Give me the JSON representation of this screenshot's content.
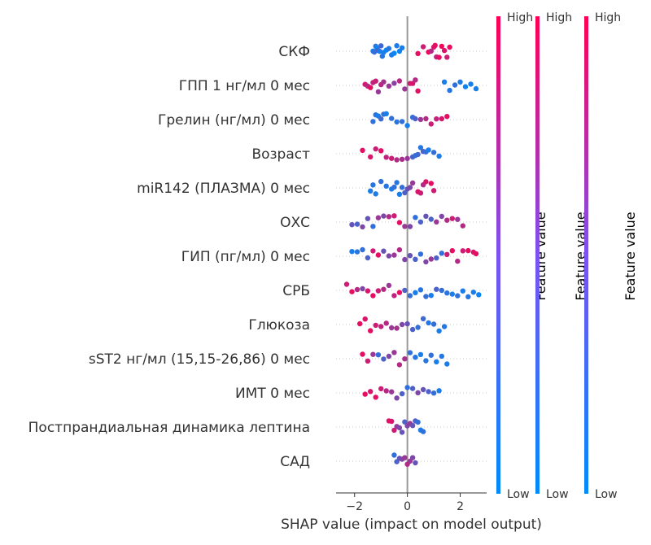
{
  "chart_data": {
    "type": "scatter",
    "title": "",
    "xlabel": "SHAP value (impact on model output)",
    "ylabel": "",
    "xlim": [
      -2.7,
      3.0
    ],
    "xticks": [
      -2,
      0,
      2
    ],
    "xtick_labels": [
      "−2",
      "0",
      "2"
    ],
    "features": [
      "СКФ",
      "ГПП 1 нг/мл 0 мес",
      "Грелин (нг/мл) 0 мес",
      "Возраст",
      "miR142 (ПЛАЗМА) 0 мес",
      "ОХС",
      "ГИП (пг/мл) 0 мес",
      "СРБ",
      "Глюкоза",
      "sST2 нг/мл (15,15-26,86) 0 мес",
      "ИМТ 0 мес",
      "Постпрандиальная динамика лептина",
      "САД"
    ],
    "colorbars": [
      {
        "high": "High",
        "low": "Low",
        "title": "Feature value"
      },
      {
        "high": "High",
        "low": "Low",
        "title": "Feature value"
      },
      {
        "high": "High",
        "low": "Low",
        "title": "Feature value"
      }
    ],
    "colors": {
      "low": "#008bfb",
      "high": "#ff0052",
      "missing": "#808080",
      "zero_line": "#999999",
      "row_line": "#cccccc"
    },
    "grid": false,
    "legend": "right",
    "series": [
      {
        "feature": "СКФ",
        "points": [
          [
            -1.3,
            0.1
          ],
          [
            -1.25,
            0.2
          ],
          [
            -1.2,
            0.15
          ],
          [
            -1.15,
            0.05
          ],
          [
            -1.1,
            0.3
          ],
          [
            -1.05,
            0.1
          ],
          [
            -1.0,
            0.25
          ],
          [
            -0.95,
            0.15
          ],
          [
            -0.9,
            0.1
          ],
          [
            -0.8,
            0.05
          ],
          [
            -0.7,
            0.15
          ],
          [
            -0.6,
            0.1
          ],
          [
            -0.5,
            0.05
          ],
          [
            -0.4,
            0.1
          ],
          [
            -0.3,
            0.05
          ],
          [
            -0.2,
            0.1
          ],
          [
            0.4,
            0.9
          ],
          [
            0.6,
            0.8
          ],
          [
            0.8,
            0.95
          ],
          [
            0.9,
            0.7
          ],
          [
            1.0,
            0.85
          ],
          [
            1.05,
            0.9
          ],
          [
            1.1,
            0.75
          ],
          [
            1.2,
            0.9
          ],
          [
            1.3,
            0.95
          ],
          [
            1.4,
            0.85
          ],
          [
            1.5,
            0.8
          ],
          [
            1.6,
            0.9
          ]
        ]
      },
      {
        "feature": "ГПП 1 нг/мл 0 мес",
        "points": [
          [
            -1.6,
            0.8
          ],
          [
            -1.5,
            0.7
          ],
          [
            -1.4,
            0.9
          ],
          [
            -1.3,
            0.75
          ],
          [
            -1.2,
            0.8
          ],
          [
            -1.1,
            0.6
          ],
          [
            -1.0,
            0.7
          ],
          [
            -0.9,
            0.65
          ],
          [
            -0.7,
            0.6
          ],
          [
            -0.5,
            0.55
          ],
          [
            -0.3,
            0.7
          ],
          [
            -0.1,
            0.6
          ],
          [
            0.1,
            0.8
          ],
          [
            0.2,
            0.85
          ],
          [
            0.3,
            0.7
          ],
          [
            0.4,
            0.9
          ],
          [
            1.4,
            0.1
          ],
          [
            1.6,
            0.15
          ],
          [
            1.8,
            0.2
          ],
          [
            2.0,
            0.1
          ],
          [
            2.2,
            0.05
          ],
          [
            2.4,
            0.1
          ],
          [
            2.6,
            0.1
          ]
        ]
      },
      {
        "feature": "Грелин (нг/мл) 0 мес",
        "points": [
          [
            -1.3,
            0.2
          ],
          [
            -1.2,
            0.15
          ],
          [
            -1.1,
            0.1
          ],
          [
            -1.0,
            0.25
          ],
          [
            -0.9,
            0.2
          ],
          [
            -0.8,
            0.1
          ],
          [
            -0.6,
            0.2
          ],
          [
            -0.4,
            0.15
          ],
          [
            -0.2,
            0.2
          ],
          [
            0.0,
            0.1
          ],
          [
            0.2,
            0.2
          ],
          [
            0.3,
            0.3
          ],
          [
            0.5,
            0.6
          ],
          [
            0.7,
            0.7
          ],
          [
            0.9,
            0.8
          ],
          [
            1.1,
            0.75
          ],
          [
            1.3,
            0.85
          ],
          [
            1.5,
            0.9
          ]
        ]
      },
      {
        "feature": "Возраст",
        "points": [
          [
            -1.7,
            0.9
          ],
          [
            -1.4,
            0.85
          ],
          [
            -1.2,
            0.8
          ],
          [
            -1.0,
            0.9
          ],
          [
            -0.8,
            0.75
          ],
          [
            -0.6,
            0.8
          ],
          [
            -0.4,
            0.7
          ],
          [
            -0.2,
            0.65
          ],
          [
            0.0,
            0.6
          ],
          [
            0.2,
            0.3
          ],
          [
            0.3,
            0.2
          ],
          [
            0.4,
            0.25
          ],
          [
            0.5,
            0.15
          ],
          [
            0.6,
            0.3
          ],
          [
            0.7,
            0.2
          ],
          [
            0.8,
            0.1
          ],
          [
            1.0,
            0.2
          ],
          [
            1.2,
            0.1
          ]
        ]
      },
      {
        "feature": "miR142 (ПЛАЗМА) 0 мес",
        "points": [
          [
            -1.4,
            0.1
          ],
          [
            -1.3,
            0.15
          ],
          [
            -1.2,
            0.1
          ],
          [
            -1.0,
            0.2
          ],
          [
            -0.8,
            0.15
          ],
          [
            -0.6,
            0.1
          ],
          [
            -0.5,
            0.2
          ],
          [
            -0.4,
            0.15
          ],
          [
            -0.3,
            0.1
          ],
          [
            -0.2,
            0.2
          ],
          [
            -0.1,
            0.3
          ],
          [
            0.0,
            0.4
          ],
          [
            0.1,
            0.5
          ],
          [
            0.2,
            0.6
          ],
          [
            0.4,
            0.9
          ],
          [
            0.5,
            0.8
          ],
          [
            0.6,
            0.7
          ],
          [
            0.7,
            0.85
          ],
          [
            0.9,
            0.9
          ],
          [
            1.0,
            0.8
          ]
        ]
      },
      {
        "feature": "ОХС",
        "points": [
          [
            -2.1,
            0.4
          ],
          [
            -1.9,
            0.3
          ],
          [
            -1.7,
            0.5
          ],
          [
            -1.5,
            0.4
          ],
          [
            -1.3,
            0.2
          ],
          [
            -1.1,
            0.6
          ],
          [
            -0.9,
            0.5
          ],
          [
            -0.7,
            0.7
          ],
          [
            -0.5,
            0.8
          ],
          [
            -0.3,
            0.9
          ],
          [
            -0.1,
            0.6
          ],
          [
            0.1,
            0.5
          ],
          [
            0.3,
            0.2
          ],
          [
            0.5,
            0.3
          ],
          [
            0.7,
            0.4
          ],
          [
            0.9,
            0.3
          ],
          [
            1.1,
            0.6
          ],
          [
            1.3,
            0.5
          ],
          [
            1.5,
            0.7
          ],
          [
            1.7,
            0.8
          ],
          [
            1.9,
            0.6
          ],
          [
            2.1,
            0.7
          ]
        ]
      },
      {
        "feature": "ГИП (пг/мл) 0 мес",
        "points": [
          [
            -2.1,
            0.1
          ],
          [
            -1.9,
            0.15
          ],
          [
            -1.7,
            0.2
          ],
          [
            -1.5,
            0.3
          ],
          [
            -1.3,
            0.8
          ],
          [
            -1.1,
            0.9
          ],
          [
            -0.9,
            0.4
          ],
          [
            -0.7,
            0.5
          ],
          [
            -0.5,
            0.6
          ],
          [
            -0.3,
            0.7
          ],
          [
            -0.1,
            0.5
          ],
          [
            0.1,
            0.4
          ],
          [
            0.3,
            0.3
          ],
          [
            0.5,
            0.2
          ],
          [
            0.7,
            0.5
          ],
          [
            0.9,
            0.6
          ],
          [
            1.1,
            0.3
          ],
          [
            1.3,
            0.2
          ],
          [
            1.5,
            0.8
          ],
          [
            1.7,
            0.9
          ],
          [
            1.9,
            0.7
          ],
          [
            2.1,
            0.8
          ],
          [
            2.3,
            0.9
          ],
          [
            2.5,
            0.85
          ],
          [
            2.6,
            0.9
          ]
        ]
      },
      {
        "feature": "СРБ",
        "points": [
          [
            -2.3,
            0.8
          ],
          [
            -2.1,
            0.9
          ],
          [
            -1.9,
            0.7
          ],
          [
            -1.7,
            0.5
          ],
          [
            -1.5,
            0.85
          ],
          [
            -1.3,
            0.9
          ],
          [
            -1.1,
            0.8
          ],
          [
            -0.9,
            0.7
          ],
          [
            -0.7,
            0.6
          ],
          [
            -0.5,
            0.75
          ],
          [
            -0.3,
            0.9
          ],
          [
            -0.1,
            0.3
          ],
          [
            0.1,
            0.2
          ],
          [
            0.3,
            0.1
          ],
          [
            0.5,
            0.15
          ],
          [
            0.7,
            0.2
          ],
          [
            0.9,
            0.1
          ],
          [
            1.1,
            0.3
          ],
          [
            1.3,
            0.2
          ],
          [
            1.5,
            0.15
          ],
          [
            1.7,
            0.1
          ],
          [
            1.9,
            0.2
          ],
          [
            2.1,
            0.1
          ],
          [
            2.3,
            0.15
          ],
          [
            2.5,
            0.1
          ],
          [
            2.7,
            0.05
          ]
        ]
      },
      {
        "feature": "Глюкоза",
        "points": [
          [
            -1.8,
            0.9
          ],
          [
            -1.6,
            0.85
          ],
          [
            -1.4,
            0.9
          ],
          [
            -1.2,
            0.8
          ],
          [
            -1.0,
            0.75
          ],
          [
            -0.8,
            0.7
          ],
          [
            -0.6,
            0.6
          ],
          [
            -0.4,
            0.65
          ],
          [
            -0.2,
            0.5
          ],
          [
            0.0,
            0.4
          ],
          [
            0.2,
            0.3
          ],
          [
            0.4,
            0.2
          ],
          [
            0.6,
            0.25
          ],
          [
            0.8,
            0.15
          ],
          [
            1.0,
            0.2
          ],
          [
            1.2,
            0.1
          ],
          [
            1.4,
            0.15
          ]
        ]
      },
      {
        "feature": "sST2 нг/мл (15,15-26,86) 0 мес",
        "points": [
          [
            -1.7,
            0.9
          ],
          [
            -1.5,
            0.8
          ],
          [
            -1.3,
            0.6
          ],
          [
            -1.1,
            0.2
          ],
          [
            -0.9,
            0.3
          ],
          [
            -0.7,
            0.5
          ],
          [
            -0.5,
            0.6
          ],
          [
            -0.3,
            0.7
          ],
          [
            -0.1,
            0.65
          ],
          [
            0.1,
            0.2
          ],
          [
            0.3,
            0.15
          ],
          [
            0.5,
            0.1
          ],
          [
            0.7,
            0.15
          ],
          [
            0.9,
            0.2
          ],
          [
            1.1,
            0.1
          ],
          [
            1.3,
            0.15
          ],
          [
            1.5,
            0.1
          ]
        ]
      },
      {
        "feature": "ИМТ 0 мес",
        "points": [
          [
            -1.6,
            0.9
          ],
          [
            -1.4,
            0.85
          ],
          [
            -1.2,
            0.9
          ],
          [
            -1.0,
            0.8
          ],
          [
            -0.8,
            0.7
          ],
          [
            -0.6,
            0.6
          ],
          [
            -0.4,
            0.5
          ],
          [
            -0.2,
            0.3
          ],
          [
            0.0,
            0.2
          ],
          [
            0.2,
            0.3
          ],
          [
            0.4,
            0.5
          ],
          [
            0.6,
            0.4
          ],
          [
            0.8,
            0.3
          ],
          [
            1.0,
            0.2
          ],
          [
            1.2,
            0.1
          ]
        ]
      },
      {
        "feature": "Постпрандиальная динамика лептина",
        "points": [
          [
            -0.7,
            0.9
          ],
          [
            -0.6,
            0.85
          ],
          [
            -0.5,
            0.8
          ],
          [
            -0.4,
            0.6
          ],
          [
            -0.3,
            0.5
          ],
          [
            -0.2,
            0.4
          ],
          [
            -0.1,
            0.3
          ],
          [
            0.0,
            0.5
          ],
          [
            0.1,
            0.6
          ],
          [
            0.2,
            0.4
          ],
          [
            0.3,
            0.3
          ],
          [
            0.4,
            0.2
          ],
          [
            0.5,
            0.1
          ],
          [
            0.6,
            0.2
          ]
        ]
      },
      {
        "feature": "САД",
        "points": [
          [
            -0.5,
            0.2
          ],
          [
            -0.4,
            0.3
          ],
          [
            -0.3,
            0.4
          ],
          [
            -0.2,
            0.5
          ],
          [
            -0.1,
            0.6
          ],
          [
            0.0,
            0.7
          ],
          [
            0.1,
            0.6
          ],
          [
            0.2,
            0.5
          ],
          [
            0.3,
            0.4
          ]
        ]
      }
    ]
  }
}
